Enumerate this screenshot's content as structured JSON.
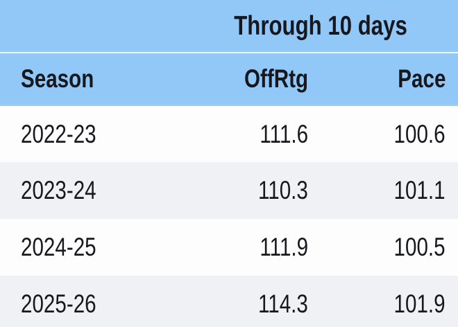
{
  "colors": {
    "header_blue": "#91c8f7",
    "row_alt_gray": "#f0f1f4",
    "row_white": "#fdfdfe",
    "text_dark": "#16181d",
    "header_divider_white": "#f2f8fe",
    "header_bottom_border": "#b6c8d8"
  },
  "chart_data": {
    "type": "table",
    "title": "Through 10 days",
    "columns": [
      "Season",
      "OffRtg",
      "Pace"
    ],
    "rows": [
      [
        "2022-23",
        111.6,
        100.6
      ],
      [
        "2023-24",
        110.3,
        101.1
      ],
      [
        "2024-25",
        111.9,
        100.5
      ],
      [
        "2025-26",
        114.3,
        101.9
      ]
    ],
    "layout_hints": {
      "group_header_spans": [
        "OffRtg",
        "Pace"
      ],
      "zebra_striping": true,
      "numeric_alignment": "right"
    }
  }
}
